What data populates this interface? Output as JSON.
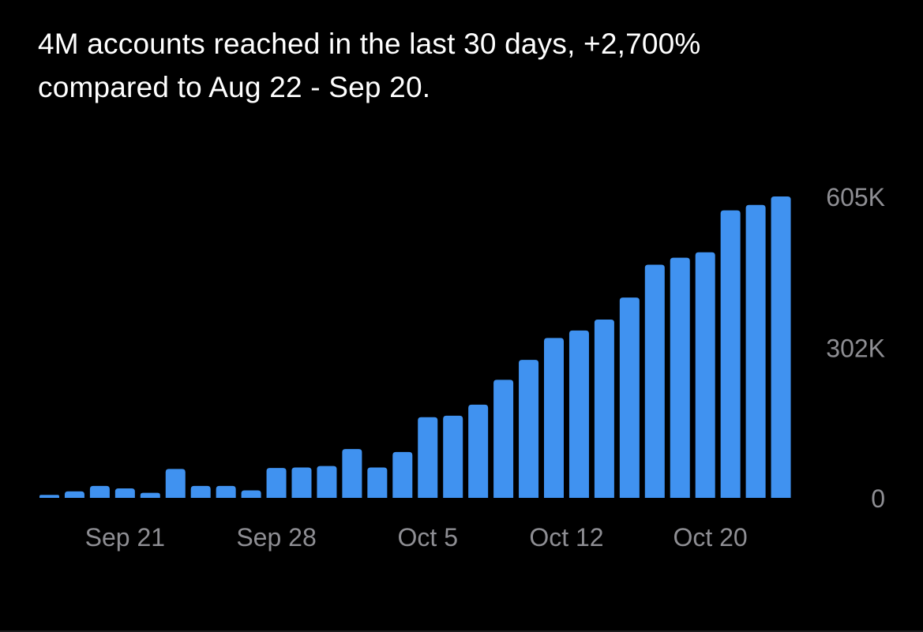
{
  "summary": {
    "line1": "4M accounts reached in the last 30 days, +2,700%",
    "line2": "compared to Aug 22 - Sep 20."
  },
  "colors": {
    "background": "#000000",
    "bar": "#4092f0",
    "text": "#ffffff",
    "tick": "#8e8e93"
  },
  "chart_data": {
    "type": "bar",
    "title": "",
    "xlabel": "",
    "ylabel": "",
    "ylim": [
      0,
      605000
    ],
    "y_axis_position": "right",
    "grid": false,
    "legend": "none",
    "y_ticks": [
      {
        "value": 0,
        "label": "0"
      },
      {
        "value": 302000,
        "label": "302K"
      },
      {
        "value": 605000,
        "label": "605K"
      }
    ],
    "x_tick_labels": [
      {
        "index": 3,
        "label": "Sep 21"
      },
      {
        "index": 9,
        "label": "Sep 28"
      },
      {
        "index": 15,
        "label": "Oct 5"
      },
      {
        "index": 20.5,
        "label": "Oct 12"
      },
      {
        "index": 26.2,
        "label": "Oct 20"
      }
    ],
    "values": [
      6000,
      13000,
      24000,
      19000,
      10000,
      58000,
      24000,
      24000,
      15000,
      60000,
      61000,
      64000,
      98000,
      61000,
      92000,
      162000,
      165000,
      187000,
      237000,
      277000,
      321000,
      336000,
      358000,
      402000,
      468000,
      482000,
      493000,
      577000,
      588000,
      605000
    ]
  }
}
